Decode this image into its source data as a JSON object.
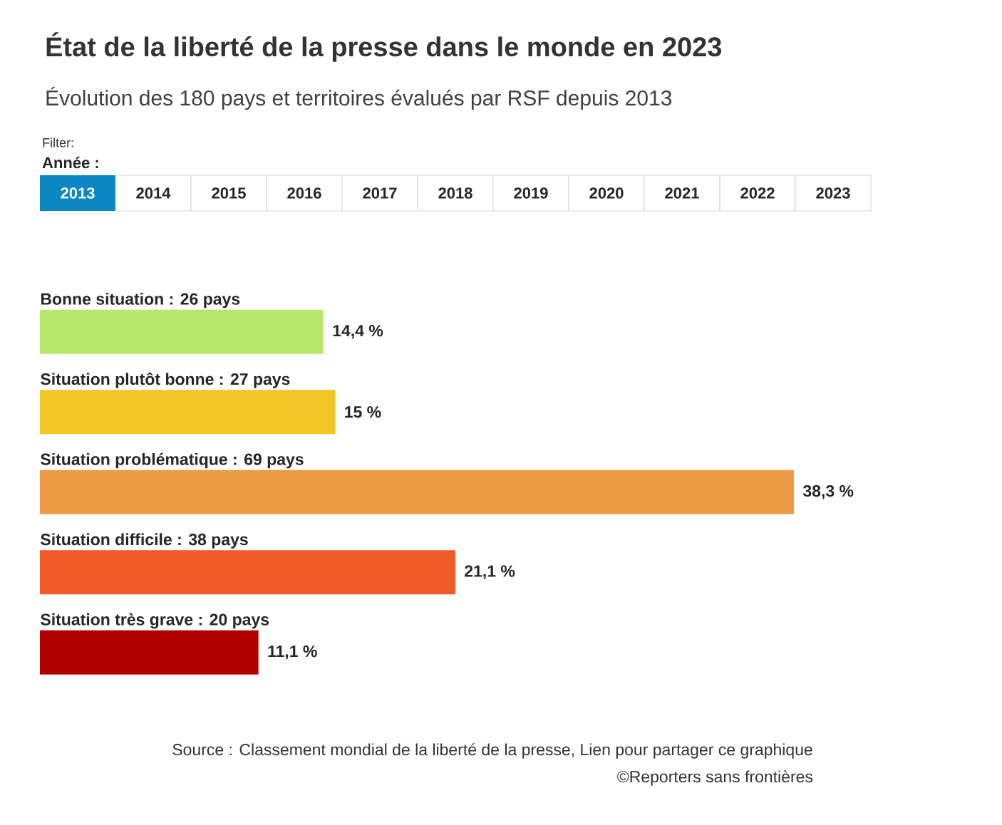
{
  "chart_data": {
    "type": "bar",
    "orientation": "horizontal",
    "title": "État de la liberté de la presse dans le monde en 2023",
    "subtitle": "Évolution des 180 pays et territoires évalués par RSF depuis 2013",
    "categories": [
      "Bonne situation : 26 pays",
      "Situation plutôt bonne : 27 pays",
      "Situation problématique : 69 pays",
      "Situation difficile : 38 pays",
      "Situation très grave : 20 pays"
    ],
    "values": [
      14.4,
      15,
      38.3,
      21.1,
      11.1
    ],
    "value_labels": [
      "14,4 %",
      "15 %",
      "38,3 %",
      "21,1 %",
      "11,1 %"
    ],
    "colors": [
      "#b8e86a",
      "#f2c624",
      "#ee9b46",
      "#f05a28",
      "#b00000"
    ],
    "annotations": [
      "Filter:",
      "Année :",
      "2013",
      "2014",
      "2015",
      "2016",
      "2017",
      "2018",
      "2019",
      "2020",
      "2021",
      "2022",
      "2023",
      "Source : Classement mondial de la liberté de la presse, Lien pour partager ce graphique",
      "©Reporters sans frontières"
    ]
  }
}
